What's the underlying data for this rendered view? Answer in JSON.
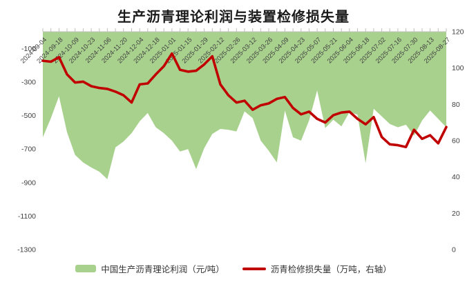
{
  "title": "生产沥青理论利润与装置检修损失量",
  "legend": {
    "profit_label": "中国生产沥青理论利润（元/吨）",
    "loss_label": "沥青检修损失量（万吨，右轴）"
  },
  "colors": {
    "area_green": "#a9d18e",
    "line_red": "#c00000",
    "axis_text": "#404040",
    "tick_line": "#bfbfbf",
    "title_text": "#1a1a1a"
  },
  "chart_data": {
    "type": "area",
    "title": "生产沥青理论利润与装置检修损失量",
    "grid": false,
    "legend_position": "bottom",
    "x_label_every": 2,
    "x_label_rotation_deg": -45,
    "categories": [
      "2024-09-04",
      "2024-09-11",
      "2024-09-18",
      "2024-09-25",
      "2024-10-09",
      "2024-10-16",
      "2024-10-23",
      "2024-10-30",
      "2024-11-06",
      "2024-11-13",
      "2024-11-20",
      "2024-11-27",
      "2024-12-04",
      "2024-12-11",
      "2024-12-18",
      "2024-12-25",
      "2025-01-01",
      "2025-01-08",
      "2025-01-15",
      "2025-01-22",
      "2025-01-29",
      "2025-02-05",
      "2025-02-12",
      "2025-02-19",
      "2025-02-26",
      "2025-03-05",
      "2025-03-12",
      "2025-03-19",
      "2025-03-26",
      "2025-04-02",
      "2025-04-09",
      "2025-04-16",
      "2025-04-23",
      "2025-04-30",
      "2025-05-07",
      "2025-05-14",
      "2025-05-21",
      "2025-05-28",
      "2025-06-04",
      "2025-06-11",
      "2025-06-18",
      "2025-06-25",
      "2025-07-02",
      "2025-07-09",
      "2025-07-16",
      "2025-07-23",
      "2025-07-30",
      "2025-08-06",
      "2025-08-13",
      "2025-08-20",
      "2025-08-27"
    ],
    "series": [
      {
        "name": "中国生产沥青理论利润（元/吨）",
        "type": "area",
        "axis": "left",
        "color": "#a9d18e",
        "values": [
          -630,
          -515,
          -385,
          -600,
          -735,
          -780,
          -810,
          -835,
          -880,
          -690,
          -655,
          -605,
          -535,
          -485,
          -570,
          -605,
          -650,
          -715,
          -700,
          -820,
          -695,
          -610,
          -580,
          -585,
          -595,
          -475,
          -515,
          -650,
          -710,
          -780,
          -470,
          -630,
          -650,
          -530,
          -350,
          -575,
          -525,
          -565,
          -480,
          -495,
          -785,
          -460,
          -505,
          -550,
          -570,
          -555,
          -620,
          -530,
          -470,
          -520,
          -570
        ]
      },
      {
        "name": "沥青检修损失量（万吨，右轴）",
        "type": "line",
        "axis": "right",
        "color": "#c00000",
        "values": [
          104,
          103.5,
          106,
          96.5,
          92,
          92.5,
          90,
          89,
          88.5,
          87,
          85,
          81,
          91,
          91.5,
          96.5,
          101,
          108,
          99,
          98,
          98.5,
          102,
          106.5,
          91,
          85,
          81,
          82,
          77,
          79.5,
          80.5,
          83,
          84,
          78,
          74.5,
          76,
          72,
          70,
          74,
          75.5,
          76,
          72,
          69,
          73,
          62,
          58,
          57.5,
          56.5,
          66,
          61,
          63,
          58.5,
          67.5
        ]
      }
    ],
    "left_axis": {
      "min": -1300,
      "max": 0,
      "tick_step": 200,
      "labels": [
        "-100",
        "-300",
        "-500",
        "-700",
        "-900",
        "-1100",
        "-1300"
      ]
    },
    "right_axis": {
      "min": 0,
      "max": 120,
      "tick_step": 20,
      "labels": [
        "120",
        "100",
        "80",
        "60",
        "40",
        "20",
        "0"
      ]
    }
  }
}
